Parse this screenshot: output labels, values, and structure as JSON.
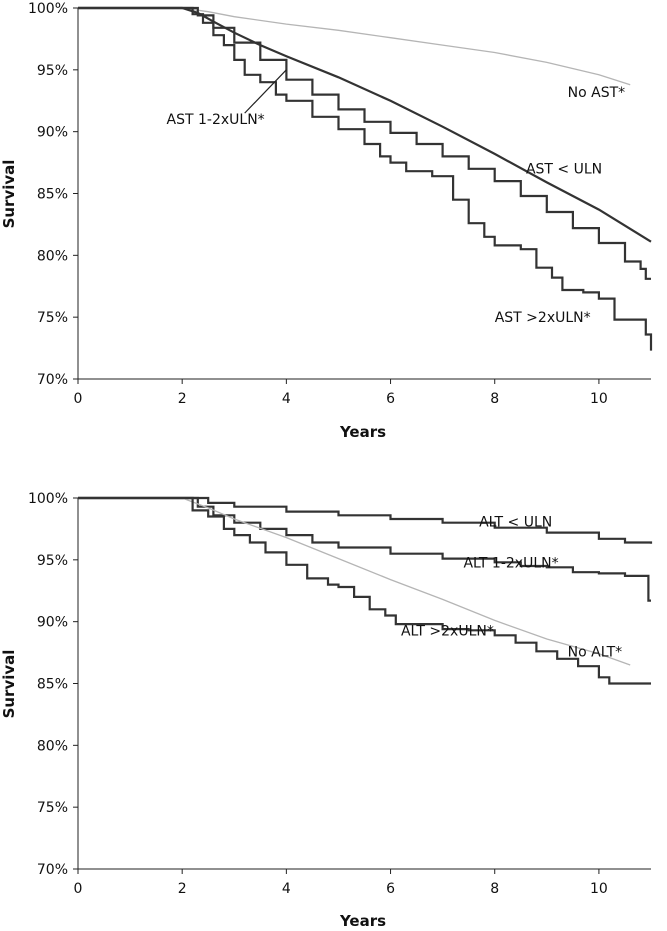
{
  "chart_data": [
    {
      "type": "line",
      "panel": "top",
      "xlabel": "Years",
      "ylabel": "Survival",
      "xlim": [
        0,
        11
      ],
      "ylim": [
        70,
        100
      ],
      "x_ticks": [
        "0",
        "2",
        "4",
        "6",
        "8",
        "10"
      ],
      "y_ticks": [
        "70%",
        "75%",
        "80%",
        "85%",
        "90%",
        "95%",
        "100%"
      ],
      "grid": false,
      "legend": "none (series labelled directly on plot)",
      "series": [
        {
          "name": "No AST*",
          "color": "#b5b5b5",
          "step": false,
          "points": [
            [
              0,
              100
            ],
            [
              2,
              100
            ],
            [
              2.5,
              99.7
            ],
            [
              3,
              99.3
            ],
            [
              4,
              98.7
            ],
            [
              5,
              98.2
            ],
            [
              6,
              97.6
            ],
            [
              7,
              97.0
            ],
            [
              8,
              96.4
            ],
            [
              9,
              95.6
            ],
            [
              10,
              94.6
            ],
            [
              10.6,
              93.8
            ]
          ]
        },
        {
          "name": "AST < ULN",
          "color": "#333333",
          "step": false,
          "points": [
            [
              0,
              100
            ],
            [
              2,
              100
            ],
            [
              2.3,
              99.6
            ],
            [
              2.6,
              98.9
            ],
            [
              3,
              98.0
            ],
            [
              3.5,
              97.0
            ],
            [
              4,
              96.1
            ],
            [
              5,
              94.4
            ],
            [
              6,
              92.5
            ],
            [
              7,
              90.4
            ],
            [
              8,
              88.2
            ],
            [
              9,
              85.9
            ],
            [
              10,
              83.7
            ],
            [
              11,
              81.1
            ]
          ]
        },
        {
          "name": "AST 1-2xULN*",
          "color": "#333333",
          "step": true,
          "points": [
            [
              0,
              100
            ],
            [
              2,
              100
            ],
            [
              2.3,
              99.4
            ],
            [
              2.6,
              98.4
            ],
            [
              3,
              97.2
            ],
            [
              3.5,
              95.8
            ],
            [
              4,
              94.2
            ],
            [
              4.5,
              93.0
            ],
            [
              5,
              91.8
            ],
            [
              5.5,
              90.8
            ],
            [
              6,
              89.9
            ],
            [
              6.5,
              89.0
            ],
            [
              7,
              88.0
            ],
            [
              7.5,
              87.0
            ],
            [
              8,
              86.0
            ],
            [
              8.5,
              84.8
            ],
            [
              9,
              83.5
            ],
            [
              9.5,
              82.2
            ],
            [
              10,
              81.0
            ],
            [
              10.5,
              79.5
            ],
            [
              10.8,
              78.9
            ],
            [
              10.9,
              78.1
            ],
            [
              11,
              78.1
            ]
          ]
        },
        {
          "name": "AST >2xULN*",
          "color": "#333333",
          "step": true,
          "points": [
            [
              0,
              100
            ],
            [
              2,
              100
            ],
            [
              2.2,
              99.5
            ],
            [
              2.4,
              98.8
            ],
            [
              2.6,
              97.8
            ],
            [
              2.8,
              97.0
            ],
            [
              3,
              95.8
            ],
            [
              3.2,
              94.6
            ],
            [
              3.5,
              94.0
            ],
            [
              3.8,
              93.0
            ],
            [
              4,
              92.5
            ],
            [
              4.5,
              91.2
            ],
            [
              5,
              90.2
            ],
            [
              5.5,
              89.0
            ],
            [
              5.8,
              88.0
            ],
            [
              6,
              87.5
            ],
            [
              6.3,
              86.8
            ],
            [
              6.8,
              86.4
            ],
            [
              7.2,
              84.5
            ],
            [
              7.5,
              82.6
            ],
            [
              7.8,
              81.5
            ],
            [
              8,
              80.8
            ],
            [
              8.5,
              80.5
            ],
            [
              8.8,
              79.0
            ],
            [
              9.1,
              78.2
            ],
            [
              9.3,
              77.2
            ],
            [
              9.7,
              77.0
            ],
            [
              10,
              76.5
            ],
            [
              10.3,
              74.8
            ],
            [
              10.8,
              74.8
            ],
            [
              10.9,
              73.6
            ],
            [
              11,
              72.3
            ]
          ]
        }
      ],
      "labels": [
        {
          "text": "No AST*",
          "at": [
            9.4,
            92.8
          ]
        },
        {
          "text": "AST 1-2xULN*",
          "at": [
            1.7,
            90.6
          ]
        },
        {
          "text": "AST < ULN",
          "at": [
            8.6,
            86.6
          ]
        },
        {
          "text": "AST >2xULN*",
          "at": [
            8.0,
            74.6
          ]
        }
      ],
      "leader_lines": [
        {
          "from": [
            3.2,
            91.5
          ],
          "to": [
            4.0,
            95.0
          ]
        }
      ]
    },
    {
      "type": "line",
      "panel": "bottom",
      "xlabel": "Years",
      "ylabel": "Survival",
      "xlim": [
        0,
        11
      ],
      "ylim": [
        70,
        100
      ],
      "x_ticks": [
        "0",
        "2",
        "4",
        "6",
        "8",
        "10"
      ],
      "y_ticks": [
        "70%",
        "75%",
        "80%",
        "85%",
        "90%",
        "95%",
        "100%"
      ],
      "grid": false,
      "legend": "none (series labelled directly on plot)",
      "series": [
        {
          "name": "ALT < ULN",
          "color": "#333333",
          "step": true,
          "points": [
            [
              0,
              100
            ],
            [
              2,
              100
            ],
            [
              2.5,
              99.6
            ],
            [
              3,
              99.3
            ],
            [
              4,
              98.9
            ],
            [
              5,
              98.6
            ],
            [
              6,
              98.3
            ],
            [
              7,
              98.0
            ],
            [
              8,
              97.6
            ],
            [
              9,
              97.2
            ],
            [
              10,
              96.7
            ],
            [
              10.5,
              96.4
            ],
            [
              11,
              96.3
            ]
          ]
        },
        {
          "name": "ALT 1-2xULN*",
          "color": "#333333",
          "step": true,
          "points": [
            [
              0,
              100
            ],
            [
              2,
              100
            ],
            [
              2.3,
              99.3
            ],
            [
              2.6,
              98.6
            ],
            [
              3,
              98.0
            ],
            [
              3.5,
              97.5
            ],
            [
              4,
              97.0
            ],
            [
              4.5,
              96.4
            ],
            [
              5,
              96.0
            ],
            [
              6,
              95.5
            ],
            [
              7,
              95.1
            ],
            [
              8,
              94.8
            ],
            [
              8.5,
              94.5
            ],
            [
              9,
              94.4
            ],
            [
              9.5,
              94.0
            ],
            [
              10,
              93.9
            ],
            [
              10.5,
              93.7
            ],
            [
              10.9,
              93.7
            ],
            [
              10.95,
              91.7
            ],
            [
              11,
              91.7
            ]
          ]
        },
        {
          "name": "No ALT*",
          "color": "#b5b5b5",
          "step": false,
          "points": [
            [
              0,
              100
            ],
            [
              2,
              100
            ],
            [
              2.5,
              99.2
            ],
            [
              3,
              98.3
            ],
            [
              4,
              96.8
            ],
            [
              5,
              95.1
            ],
            [
              6,
              93.4
            ],
            [
              7,
              91.8
            ],
            [
              8,
              90.1
            ],
            [
              9,
              88.6
            ],
            [
              10,
              87.4
            ],
            [
              10.6,
              86.5
            ]
          ]
        },
        {
          "name": "ALT >2xULN*",
          "color": "#333333",
          "step": true,
          "points": [
            [
              0,
              100
            ],
            [
              2,
              100
            ],
            [
              2.2,
              99.0
            ],
            [
              2.5,
              98.5
            ],
            [
              2.8,
              97.5
            ],
            [
              3,
              97.0
            ],
            [
              3.3,
              96.4
            ],
            [
              3.6,
              95.6
            ],
            [
              4,
              94.6
            ],
            [
              4.4,
              93.5
            ],
            [
              4.8,
              93.0
            ],
            [
              5,
              92.8
            ],
            [
              5.3,
              92.0
            ],
            [
              5.6,
              91.0
            ],
            [
              5.9,
              90.5
            ],
            [
              6.1,
              89.8
            ],
            [
              6.5,
              89.8
            ],
            [
              7,
              89.4
            ],
            [
              7.5,
              89.3
            ],
            [
              8,
              88.9
            ],
            [
              8.4,
              88.3
            ],
            [
              8.8,
              87.6
            ],
            [
              9.2,
              87.0
            ],
            [
              9.6,
              86.4
            ],
            [
              10,
              85.5
            ],
            [
              10.2,
              85.0
            ],
            [
              11,
              85.0
            ]
          ]
        }
      ],
      "labels": [
        {
          "text": "ALT < ULN",
          "at": [
            7.7,
            97.7
          ]
        },
        {
          "text": "ALT 1-2xULN*",
          "at": [
            7.4,
            94.4
          ]
        },
        {
          "text": "ALT >2xULN*",
          "at": [
            6.2,
            88.9
          ]
        },
        {
          "text": "No ALT*",
          "at": [
            9.4,
            87.2
          ]
        }
      ],
      "leader_lines": []
    }
  ]
}
